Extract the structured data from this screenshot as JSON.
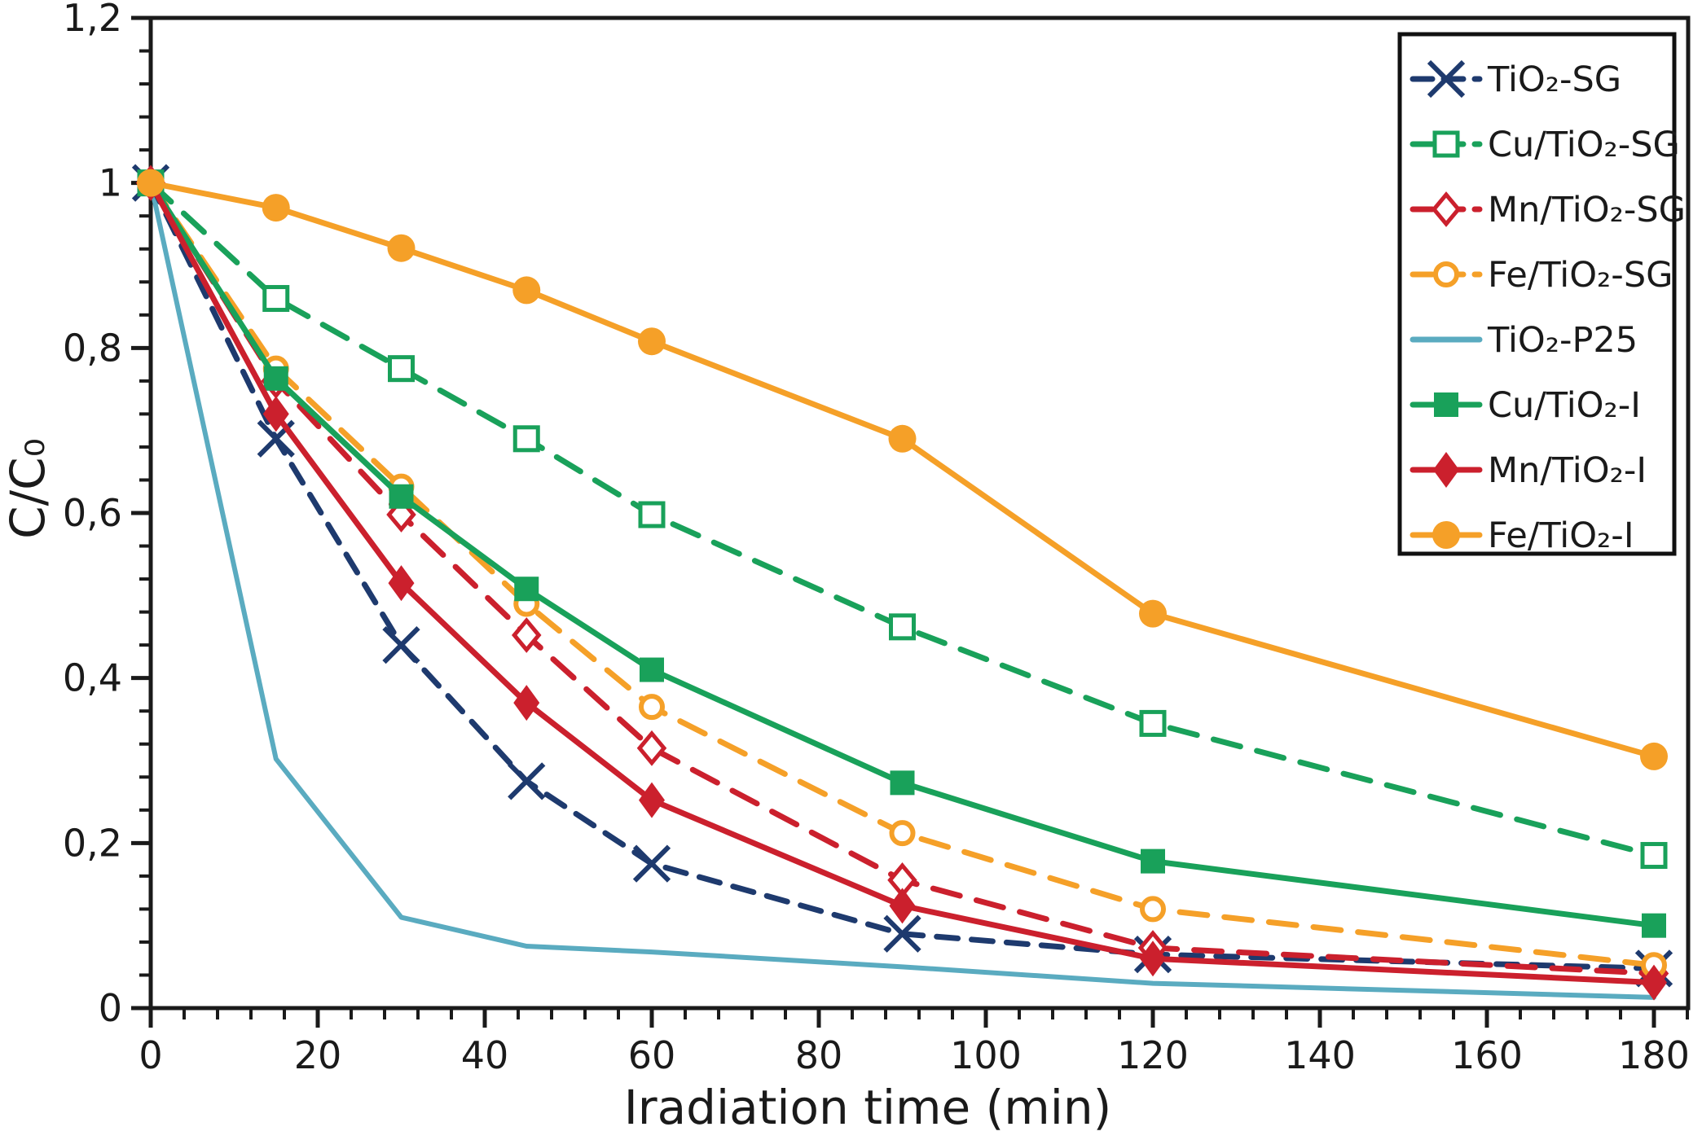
{
  "chart_data": {
    "type": "line",
    "title": "",
    "xlabel": "Iradiation time (min)",
    "ylabel": "C/C₀",
    "xlim": [
      0,
      184
    ],
    "ylim": [
      0,
      1.2
    ],
    "grid": false,
    "legend_position": "top-right",
    "x_tick_labels": [
      "0",
      "20",
      "40",
      "60",
      "80",
      "100",
      "120",
      "140",
      "160",
      "180"
    ],
    "x_tick_values": [
      0,
      20,
      40,
      60,
      80,
      100,
      120,
      140,
      160,
      180
    ],
    "x_minor_step": 4,
    "y_tick_labels": [
      "0",
      "0,2",
      "0,4",
      "0,6",
      "0,8",
      "1",
      "1,2"
    ],
    "y_tick_values": [
      0,
      0.2,
      0.4,
      0.6,
      0.8,
      1.0,
      1.2
    ],
    "y_minor_step": 0.04,
    "x": [
      0,
      15,
      30,
      45,
      60,
      90,
      120,
      180
    ],
    "series": [
      {
        "id": "tio2-sg",
        "name": "TiO₂-SG",
        "color": "#1e3a6e",
        "line": "dashed",
        "marker": "x",
        "values": [
          1,
          0.69,
          0.44,
          0.275,
          0.175,
          0.09,
          0.065,
          0.048
        ]
      },
      {
        "id": "cu-tio2-sg",
        "name": "Cu/TiO₂-SG",
        "color": "#19a15a",
        "line": "dashed",
        "marker": "square-open",
        "values": [
          1,
          0.86,
          0.775,
          0.69,
          0.598,
          0.462,
          0.345,
          0.185
        ]
      },
      {
        "id": "mn-tio2-sg",
        "name": "Mn/TiO₂-SG",
        "color": "#cb202d",
        "line": "dashed",
        "marker": "diamond-open",
        "values": [
          1,
          0.76,
          0.598,
          0.452,
          0.315,
          0.155,
          0.073,
          0.042
        ]
      },
      {
        "id": "fe-tio2-sg",
        "name": "Fe/TiO₂-SG",
        "color": "#f5a028",
        "line": "dashed",
        "marker": "circle-open",
        "values": [
          1,
          0.775,
          0.632,
          0.49,
          0.365,
          0.212,
          0.12,
          0.052
        ]
      },
      {
        "id": "tio2-p25",
        "name": "TiO₂-P25",
        "color": "#5aabc0",
        "line": "solid",
        "marker": "none",
        "values": [
          1,
          0.302,
          0.11,
          0.075,
          0.068,
          0.05,
          0.03,
          0.013
        ]
      },
      {
        "id": "cu-tio2-i",
        "name": "Cu/TiO₂-I",
        "color": "#19a15a",
        "line": "solid",
        "marker": "square",
        "values": [
          1,
          0.763,
          0.62,
          0.508,
          0.41,
          0.273,
          0.178,
          0.1
        ]
      },
      {
        "id": "mn-tio2-i",
        "name": "Mn/TiO₂-I",
        "color": "#cb202d",
        "line": "solid",
        "marker": "diamond",
        "values": [
          1,
          0.72,
          0.515,
          0.37,
          0.252,
          0.124,
          0.06,
          0.031
        ]
      },
      {
        "id": "fe-tio2-i",
        "name": "Fe/TiO₂-I",
        "color": "#f5a028",
        "line": "solid",
        "marker": "circle",
        "values": [
          1,
          0.97,
          0.921,
          0.87,
          0.808,
          0.69,
          0.478,
          0.305
        ]
      }
    ],
    "axis_color": "#1a1a1a"
  }
}
